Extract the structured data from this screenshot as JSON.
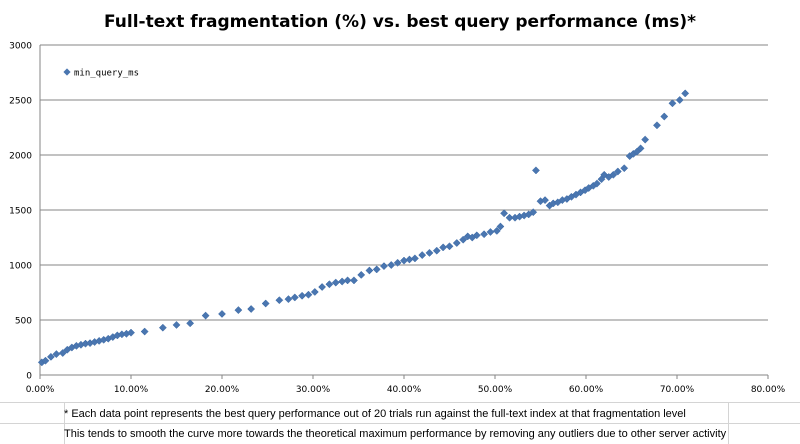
{
  "chart_data": {
    "type": "scatter",
    "title": "Full-text fragmentation (%) vs. best query performance (ms)*",
    "xlabel": "",
    "ylabel": "",
    "xlim": [
      0,
      80
    ],
    "ylim": [
      0,
      3000
    ],
    "x_ticks": [
      "0.00%",
      "10.00%",
      "20.00%",
      "30.00%",
      "40.00%",
      "50.00%",
      "60.00%",
      "70.00%",
      "80.00%"
    ],
    "y_ticks": [
      "0",
      "500",
      "1000",
      "1500",
      "2000",
      "2500",
      "3000"
    ],
    "grid": "horizontal",
    "legend": "top-left",
    "marker_color": "#4a76b0",
    "series": [
      {
        "name": "min_query_ms",
        "points": [
          [
            0.2,
            115
          ],
          [
            0.6,
            130
          ],
          [
            1.2,
            165
          ],
          [
            1.8,
            190
          ],
          [
            2.5,
            200
          ],
          [
            3.0,
            230
          ],
          [
            3.5,
            250
          ],
          [
            4.0,
            265
          ],
          [
            4.5,
            275
          ],
          [
            5.0,
            285
          ],
          [
            5.5,
            290
          ],
          [
            6.0,
            300
          ],
          [
            6.5,
            310
          ],
          [
            7.0,
            320
          ],
          [
            7.5,
            330
          ],
          [
            8.0,
            345
          ],
          [
            8.5,
            360
          ],
          [
            9.0,
            370
          ],
          [
            9.5,
            375
          ],
          [
            10.0,
            385
          ],
          [
            11.5,
            395
          ],
          [
            13.5,
            430
          ],
          [
            15.0,
            455
          ],
          [
            16.5,
            470
          ],
          [
            18.2,
            540
          ],
          [
            20.0,
            555
          ],
          [
            21.8,
            590
          ],
          [
            23.2,
            600
          ],
          [
            24.8,
            650
          ],
          [
            26.3,
            680
          ],
          [
            27.3,
            690
          ],
          [
            28.0,
            705
          ],
          [
            28.8,
            720
          ],
          [
            29.5,
            730
          ],
          [
            30.2,
            755
          ],
          [
            31.0,
            800
          ],
          [
            31.8,
            825
          ],
          [
            32.5,
            840
          ],
          [
            33.2,
            850
          ],
          [
            33.8,
            860
          ],
          [
            34.5,
            860
          ],
          [
            35.3,
            910
          ],
          [
            36.2,
            950
          ],
          [
            37.0,
            960
          ],
          [
            37.8,
            990
          ],
          [
            38.6,
            1000
          ],
          [
            39.3,
            1020
          ],
          [
            40.0,
            1040
          ],
          [
            40.6,
            1050
          ],
          [
            41.2,
            1060
          ],
          [
            42.0,
            1090
          ],
          [
            42.8,
            1110
          ],
          [
            43.6,
            1130
          ],
          [
            44.3,
            1160
          ],
          [
            45.0,
            1170
          ],
          [
            45.8,
            1200
          ],
          [
            46.5,
            1230
          ],
          [
            47.0,
            1260
          ],
          [
            47.5,
            1250
          ],
          [
            48.0,
            1270
          ],
          [
            48.8,
            1280
          ],
          [
            49.5,
            1300
          ],
          [
            50.2,
            1310
          ],
          [
            50.6,
            1350
          ],
          [
            51.0,
            1470
          ],
          [
            51.6,
            1430
          ],
          [
            52.2,
            1430
          ],
          [
            52.7,
            1440
          ],
          [
            53.2,
            1450
          ],
          [
            53.7,
            1460
          ],
          [
            54.2,
            1480
          ],
          [
            54.5,
            1860
          ],
          [
            55.0,
            1580
          ],
          [
            55.5,
            1590
          ],
          [
            56.0,
            1540
          ],
          [
            56.4,
            1560
          ],
          [
            56.9,
            1570
          ],
          [
            57.4,
            1590
          ],
          [
            57.9,
            1600
          ],
          [
            58.4,
            1620
          ],
          [
            58.9,
            1640
          ],
          [
            59.4,
            1660
          ],
          [
            59.9,
            1680
          ],
          [
            60.3,
            1700
          ],
          [
            60.8,
            1720
          ],
          [
            61.2,
            1740
          ],
          [
            61.7,
            1780
          ],
          [
            62.0,
            1820
          ],
          [
            62.5,
            1800
          ],
          [
            63.0,
            1820
          ],
          [
            63.5,
            1850
          ],
          [
            64.2,
            1880
          ],
          [
            64.8,
            1990
          ],
          [
            65.2,
            2010
          ],
          [
            65.6,
            2030
          ],
          [
            66.0,
            2060
          ],
          [
            66.5,
            2140
          ],
          [
            67.8,
            2270
          ],
          [
            68.6,
            2350
          ],
          [
            69.5,
            2470
          ],
          [
            70.3,
            2500
          ],
          [
            70.9,
            2560
          ]
        ]
      }
    ]
  },
  "footnotes": [
    "* Each data point represents the best query performance out of 20 trials run against the full-text index at that fragmentation level",
    "This tends to smooth the curve more towards the theoretical maximum performance by removing any outliers due to other server activity"
  ]
}
